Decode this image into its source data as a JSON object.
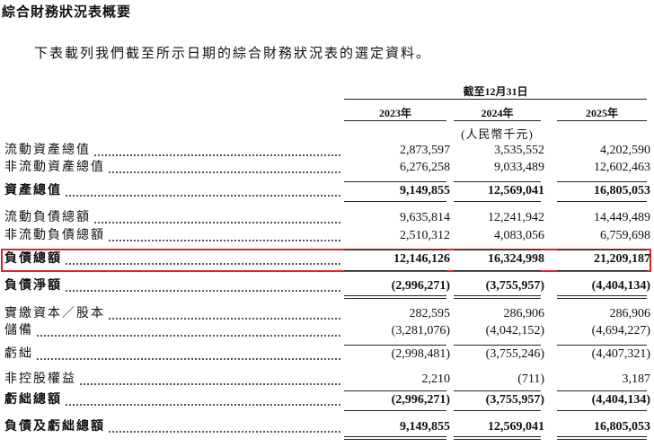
{
  "title": "綜合財務狀況表概要",
  "intro": "下表載列我們截至所示日期的綜合財務狀況表的選定資料。",
  "table": {
    "period_header": "截至12月31日",
    "columns": [
      "2023年",
      "2024年",
      "2025年"
    ],
    "unit": "(人民幣千元)",
    "rows": [
      {
        "label": "流動資產總值",
        "values": [
          "2,873,597",
          "3,535,552",
          "4,202,590"
        ]
      },
      {
        "label": "非流動資產總值",
        "values": [
          "6,276,258",
          "9,033,489",
          "12,602,463"
        ]
      },
      {
        "label": "資產總值",
        "values": [
          "9,149,855",
          "12,569,041",
          "16,805,053"
        ]
      },
      {
        "label": "流動負債總額",
        "values": [
          "9,635,814",
          "12,241,942",
          "14,449,489"
        ]
      },
      {
        "label": "非流動負債總額",
        "values": [
          "2,510,312",
          "4,083,056",
          "6,759,698"
        ]
      },
      {
        "label": "負債總額",
        "values": [
          "12,146,126",
          "16,324,998",
          "21,209,187"
        ]
      },
      {
        "label": "負債淨額",
        "values": [
          "(2,996,271)",
          "(3,755,957)",
          "(4,404,134)"
        ]
      },
      {
        "label": "實繳資本／股本",
        "values": [
          "282,595",
          "286,906",
          "286,906"
        ]
      },
      {
        "label": "儲備",
        "values": [
          "(3,281,076)",
          "(4,042,152)",
          "(4,694,227)"
        ]
      },
      {
        "label": "虧絀",
        "values": [
          "(2,998,481)",
          "(3,755,246)",
          "(4,407,321)"
        ]
      },
      {
        "label": "非控股權益",
        "values": [
          "2,210",
          "(711)",
          "3,187"
        ]
      },
      {
        "label": "虧絀總額",
        "values": [
          "(2,996,271)",
          "(3,755,957)",
          "(4,404,134)"
        ]
      },
      {
        "label": "負債及虧絀總額",
        "values": [
          "9,149,855",
          "12,569,041",
          "16,805,053"
        ]
      }
    ]
  }
}
